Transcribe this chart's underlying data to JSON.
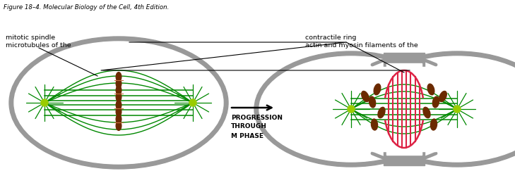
{
  "bg_color": "#ffffff",
  "cell_outline_color": "#999999",
  "cell_fill_color": "#ffffff",
  "spindle_color": "#008800",
  "chromosome_color": "#6b2a00",
  "centrosome_color": "#99cc00",
  "contractile_ring_color": "#dd2244",
  "arrow_color": "#000000",
  "label_color": "#000000",
  "progression_text": [
    "PROGRESSION",
    "THROUGH",
    "M PHASE"
  ],
  "label_left_line1": "microtubules of the",
  "label_left_line2": "mitotic spindle",
  "label_right_line1": "actin and myosin filaments of the",
  "label_right_line2": "contractile ring",
  "figure_caption": "Figure 18–4. Molecular Biology of the Cell, 4th Edition.",
  "figsize": [
    7.29,
    2.43
  ],
  "dpi": 100
}
